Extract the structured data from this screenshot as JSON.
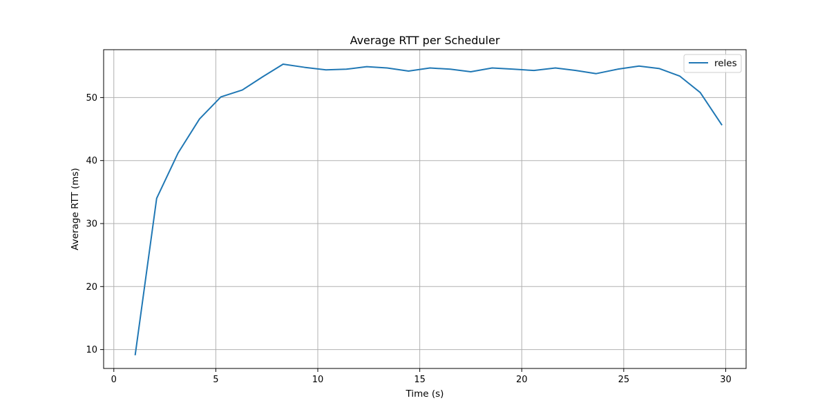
{
  "chart_data": {
    "type": "line",
    "title": "Average RTT per Scheduler",
    "xlabel": "Time (s)",
    "ylabel": "Average RTT (ms)",
    "xlim": [
      -0.5,
      31.0
    ],
    "ylim": [
      7.0,
      57.6
    ],
    "xticks": [
      0,
      5,
      10,
      15,
      20,
      25,
      30
    ],
    "yticks": [
      10,
      20,
      30,
      40,
      50
    ],
    "grid": true,
    "legend_position": "top-right",
    "series": [
      {
        "name": "reles",
        "color": "#1f77b4",
        "x": [
          1.05,
          2.1,
          3.15,
          4.2,
          5.25,
          6.3,
          7.3,
          8.3,
          9.35,
          10.4,
          11.4,
          12.4,
          13.4,
          14.45,
          15.5,
          16.5,
          17.5,
          18.55,
          19.6,
          20.6,
          21.65,
          22.65,
          23.65,
          24.7,
          25.75,
          26.75,
          27.75,
          28.75,
          29.8
        ],
        "y": [
          9.2,
          34.0,
          41.2,
          46.6,
          50.1,
          51.2,
          53.3,
          55.3,
          54.8,
          54.4,
          54.5,
          54.9,
          54.7,
          54.2,
          54.7,
          54.5,
          54.1,
          54.7,
          54.5,
          54.3,
          54.7,
          54.3,
          53.8,
          54.5,
          55.0,
          54.6,
          53.4,
          50.8,
          45.7
        ]
      }
    ]
  }
}
